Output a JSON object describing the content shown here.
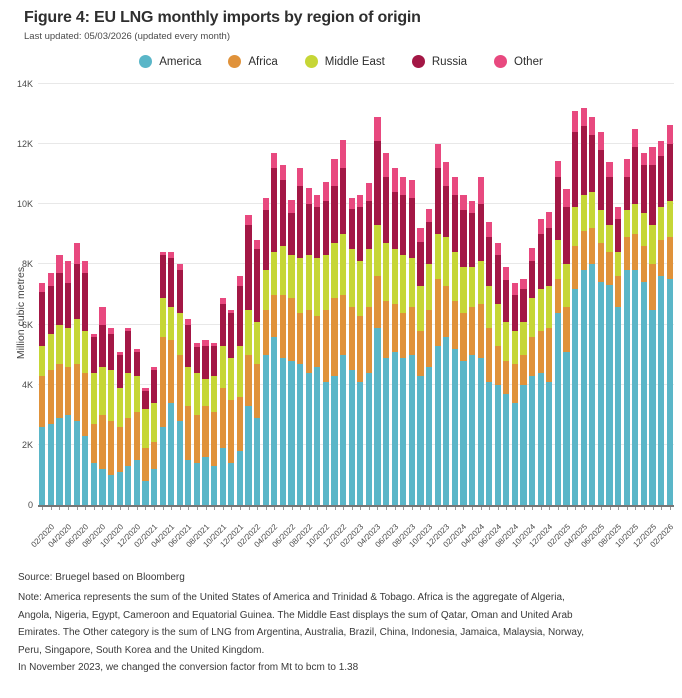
{
  "header": {
    "title": "Figure 4: EU LNG monthly imports by region of origin",
    "subtitle": "Last updated: 05/03/2026 (updated every month)"
  },
  "legend": [
    {
      "label": "America",
      "color": "#5ab6c8"
    },
    {
      "label": "Africa",
      "color": "#e0923a"
    },
    {
      "label": "Middle East",
      "color": "#c6d636"
    },
    {
      "label": "Russia",
      "color": "#a31745"
    },
    {
      "label": "Other",
      "color": "#e8497f"
    }
  ],
  "chart_data": {
    "type": "bar",
    "stacked": true,
    "title": "Figure 4: EU LNG monthly imports by region of origin",
    "xlabel": "",
    "ylabel": "Million cubic metres",
    "ylim": [
      0,
      14000
    ],
    "grid": true,
    "legend_position": "top-center",
    "y_ticks": [
      {
        "value": 0,
        "label": "0"
      },
      {
        "value": 2000,
        "label": "2K"
      },
      {
        "value": 4000,
        "label": "4K"
      },
      {
        "value": 6000,
        "label": "6K"
      },
      {
        "value": 8000,
        "label": "8K"
      },
      {
        "value": 10000,
        "label": "10K"
      },
      {
        "value": 12000,
        "label": "12K"
      },
      {
        "value": 14000,
        "label": "14K"
      }
    ],
    "x": [
      "01/2020",
      "02/2020",
      "03/2020",
      "04/2020",
      "05/2020",
      "06/2020",
      "07/2020",
      "08/2020",
      "09/2020",
      "10/2020",
      "11/2020",
      "12/2020",
      "01/2021",
      "02/2021",
      "03/2021",
      "04/2021",
      "05/2021",
      "06/2021",
      "07/2021",
      "08/2021",
      "09/2021",
      "10/2021",
      "11/2021",
      "12/2021",
      "01/2022",
      "02/2022",
      "03/2022",
      "04/2022",
      "05/2022",
      "06/2022",
      "07/2022",
      "08/2022",
      "09/2022",
      "10/2022",
      "11/2022",
      "12/2022",
      "01/2023",
      "02/2023",
      "03/2023",
      "04/2023",
      "05/2023",
      "06/2023",
      "07/2023",
      "08/2023",
      "09/2023",
      "10/2023",
      "11/2023",
      "12/2023",
      "01/2024",
      "02/2024",
      "03/2024",
      "04/2024",
      "05/2024",
      "06/2024",
      "07/2024",
      "08/2024",
      "09/2024",
      "10/2024",
      "11/2024",
      "12/2024",
      "01/2025",
      "02/2025",
      "03/2025",
      "04/2025",
      "05/2025",
      "06/2025",
      "07/2025",
      "08/2025",
      "09/2025",
      "10/2025",
      "11/2025",
      "12/2025",
      "01/2026",
      "02/2026"
    ],
    "x_tick_labels": [
      "02/2020",
      "04/2020",
      "06/2020",
      "08/2020",
      "10/2020",
      "12/2020",
      "02/2021",
      "04/2021",
      "06/2021",
      "08/2021",
      "10/2021",
      "12/2021",
      "02/2022",
      "04/2022",
      "06/2022",
      "08/2022",
      "10/2022",
      "12/2022",
      "02/2023",
      "04/2023",
      "06/2023",
      "08/2023",
      "10/2023",
      "12/2023",
      "02/2024",
      "04/2024",
      "06/2024",
      "08/2024",
      "10/2024",
      "12/2024",
      "02/2025",
      "04/2025",
      "06/2025",
      "08/2025",
      "10/2025",
      "12/2025",
      "02/2026"
    ],
    "series": [
      {
        "name": "America",
        "color": "#5ab6c8",
        "values": [
          2600,
          2700,
          2900,
          3000,
          2800,
          2300,
          1400,
          1200,
          1000,
          1100,
          1300,
          1500,
          800,
          1200,
          2600,
          3400,
          2800,
          1500,
          1400,
          1600,
          1300,
          1900,
          1400,
          1800,
          3300,
          2900,
          5000,
          5600,
          4900,
          4800,
          4700,
          4400,
          4600,
          4100,
          4300,
          5000,
          4500,
          4100,
          4400,
          5900,
          4900,
          5100,
          4900,
          5000,
          4300,
          4600,
          5300,
          5600,
          5200,
          4800,
          5000,
          4900,
          4100,
          4000,
          3700,
          3400,
          4000,
          4300,
          4400,
          4100,
          6400,
          5100,
          7200,
          7800,
          8000,
          7400,
          7300,
          6600,
          7800,
          7800,
          7400,
          6500,
          7600,
          7500
        ]
      },
      {
        "name": "Africa",
        "color": "#e0923a",
        "values": [
          1700,
          1800,
          1800,
          1600,
          1900,
          2100,
          1300,
          1800,
          1800,
          1500,
          1600,
          1600,
          1100,
          900,
          3000,
          2100,
          2200,
          1800,
          1600,
          1700,
          1800,
          2000,
          2100,
          1800,
          1700,
          1800,
          1500,
          1400,
          2100,
          2100,
          1700,
          2100,
          1700,
          2400,
          2600,
          2000,
          2100,
          2200,
          2200,
          1700,
          1900,
          1600,
          1500,
          1600,
          1500,
          1900,
          2200,
          1700,
          1600,
          1600,
          1600,
          1800,
          1800,
          1300,
          1100,
          1300,
          1000,
          1300,
          1400,
          1800,
          1100,
          1500,
          1400,
          1300,
          1200,
          1300,
          1100,
          1000,
          1100,
          1200,
          1200,
          1500,
          1200,
          1400
        ]
      },
      {
        "name": "Middle East",
        "color": "#c6d636",
        "values": [
          1000,
          1200,
          1300,
          1300,
          1500,
          1400,
          1700,
          1600,
          1700,
          1300,
          1500,
          1200,
          1300,
          1300,
          1300,
          1100,
          1400,
          1300,
          1400,
          900,
          1200,
          1400,
          1400,
          1700,
          1500,
          1400,
          1300,
          1400,
          1600,
          1400,
          1800,
          1800,
          1900,
          1800,
          1800,
          2000,
          1900,
          1800,
          1900,
          1700,
          1900,
          1800,
          1900,
          1600,
          1500,
          1500,
          1500,
          1600,
          1600,
          1500,
          1300,
          1400,
          1400,
          1400,
          1300,
          1100,
          1100,
          1300,
          1400,
          1400,
          1300,
          1400,
          1300,
          1200,
          1200,
          1100,
          900,
          800,
          900,
          1000,
          1100,
          1300,
          1100,
          1200
        ]
      },
      {
        "name": "Russia",
        "color": "#a31745",
        "values": [
          1800,
          1600,
          1700,
          1500,
          1800,
          1900,
          1200,
          1400,
          1200,
          1100,
          1400,
          800,
          600,
          1100,
          1400,
          1600,
          1400,
          1400,
          850,
          1100,
          1000,
          1400,
          1500,
          2000,
          2800,
          2400,
          2000,
          2800,
          2200,
          1400,
          2400,
          1700,
          1700,
          1800,
          1900,
          2200,
          1350,
          1800,
          1600,
          2800,
          2200,
          1900,
          2000,
          2000,
          1450,
          1400,
          2200,
          1700,
          1900,
          1900,
          1800,
          1900,
          1600,
          1600,
          1400,
          1200,
          1100,
          1200,
          1800,
          1900,
          2100,
          1900,
          2500,
          2300,
          1900,
          2000,
          1600,
          1100,
          1100,
          1900,
          1600,
          2000,
          1700,
          1900
        ]
      },
      {
        "name": "Other",
        "color": "#e8497f",
        "values": [
          300,
          400,
          600,
          700,
          700,
          400,
          100,
          600,
          200,
          100,
          100,
          100,
          100,
          100,
          100,
          200,
          200,
          200,
          150,
          200,
          100,
          200,
          100,
          300,
          350,
          300,
          400,
          500,
          500,
          450,
          600,
          550,
          400,
          650,
          900,
          950,
          350,
          400,
          600,
          800,
          800,
          800,
          600,
          600,
          450,
          450,
          800,
          800,
          600,
          500,
          400,
          900,
          500,
          400,
          400,
          400,
          300,
          450,
          500,
          550,
          550,
          600,
          700,
          600,
          600,
          600,
          500,
          400,
          600,
          600,
          400,
          600,
          500,
          650
        ]
      }
    ]
  },
  "footer": {
    "source": "Source: Bruegel based on Bloomberg",
    "note_lines": [
      "Note: America represents the sum of the United States of America and Trinidad & Tobago. Africa is the aggregate of Algeria,",
      "Angola, Nigeria, Egypt, Cameroon and Equatorial Guinea. The Middle East displays the sum of Qatar, Oman and United Arab",
      "Emirates. The Other category is the sum of LNG from Argentina, Australia, Brazil, China, Indonesia, Jamaica, Malaysia, Norway,",
      "Peru, Singapore, South Korea and the United Kingdom."
    ],
    "conversion_note": "In November 2023, we changed the conversion factor from Mt to bcm to 1.38"
  }
}
